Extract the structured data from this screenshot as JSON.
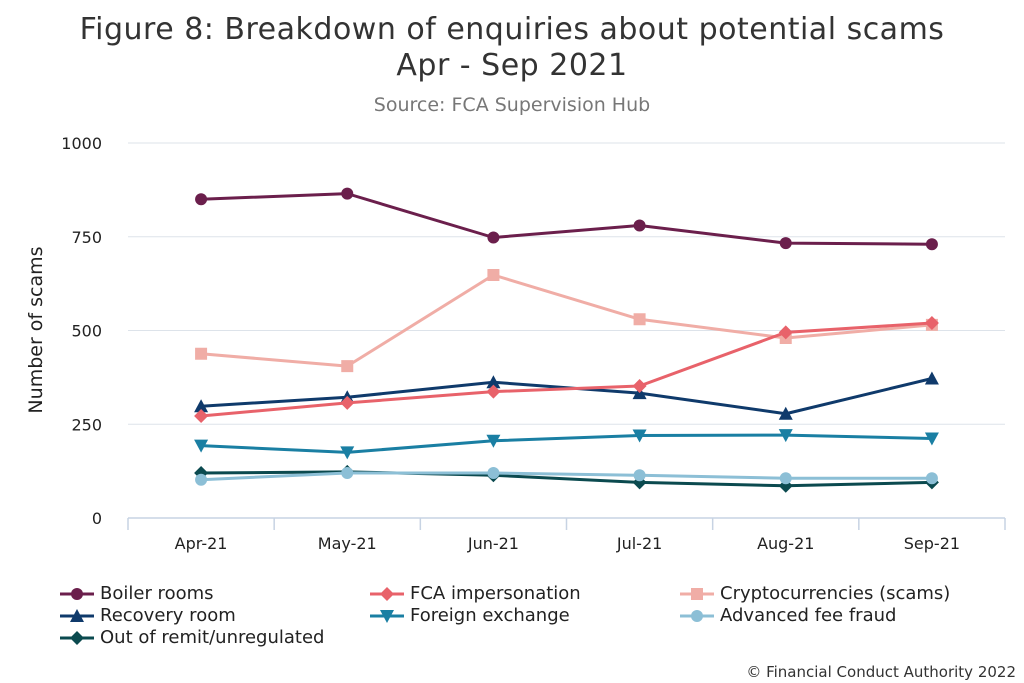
{
  "title_line1": "Figure 8: Breakdown of enquiries about potential scams",
  "title_line2": "Apr - Sep 2021",
  "subtitle": "Source: FCA Supervision Hub",
  "copyright": "© Financial Conduct Authority 2022",
  "chart_data": {
    "type": "line",
    "title": "Figure 8: Breakdown of enquiries about potential scams Apr - Sep 2021",
    "xlabel": "",
    "ylabel": "Number of scams",
    "categories": [
      "Apr-21",
      "May-21",
      "Jun-21",
      "Jul-21",
      "Aug-21",
      "Sep-21"
    ],
    "ylim": [
      0,
      1000
    ],
    "yticks": [
      0,
      250,
      500,
      750,
      1000
    ],
    "grid": true,
    "legend_position": "bottom",
    "series": [
      {
        "name": "Boiler rooms",
        "color": "#6b1f4c",
        "marker": "circle",
        "values": [
          850,
          865,
          748,
          780,
          733,
          730
        ]
      },
      {
        "name": "FCA impersonation",
        "color": "#e8626a",
        "marker": "diamond",
        "values": [
          272,
          307,
          337,
          352,
          495,
          520
        ]
      },
      {
        "name": "Cryptocurrencies (scams)",
        "color": "#f0ada6",
        "marker": "square",
        "values": [
          438,
          405,
          648,
          530,
          480,
          515
        ]
      },
      {
        "name": "Recovery room",
        "color": "#0f3a6b",
        "marker": "triangle-up",
        "values": [
          298,
          322,
          362,
          333,
          278,
          372
        ]
      },
      {
        "name": "Foreign exchange",
        "color": "#1a7fa3",
        "marker": "triangle-down",
        "values": [
          193,
          175,
          206,
          220,
          221,
          212
        ]
      },
      {
        "name": "Advanced fee fraud",
        "color": "#8cbfd6",
        "marker": "circle",
        "values": [
          102,
          120,
          120,
          114,
          106,
          106
        ]
      },
      {
        "name": "Out of remit/unregulated",
        "color": "#0b4a4f",
        "marker": "diamond",
        "values": [
          120,
          123,
          114,
          95,
          86,
          95
        ]
      }
    ]
  }
}
